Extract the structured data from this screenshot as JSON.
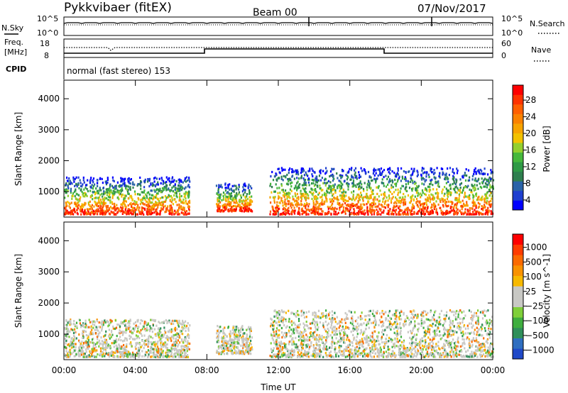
{
  "header": {
    "station": "Pykkvibaer (fitEX)",
    "beam": "Beam 00",
    "date": "07/Nov/2017"
  },
  "noise_panel": {
    "left_label": "N.Sky",
    "right_label": "N.Search",
    "ticks": [
      "10^5",
      "10^0"
    ]
  },
  "freq_panel": {
    "left_label_1": "Freq.",
    "left_label_2": "[MHz]",
    "left_ticks": [
      "18",
      "8"
    ],
    "right_label": "Nave",
    "right_ticks": [
      "60",
      "0"
    ],
    "cpid_label": "CPID",
    "cpid_text": "normal (fast stereo) 153"
  },
  "chart_data": [
    {
      "type": "heatmap",
      "title": "",
      "ylabel": "Slant Range [km]",
      "ylim": [
        180,
        4600
      ],
      "yticks": [
        1000,
        2000,
        3000,
        4000
      ],
      "xlabel": "Time UT",
      "xlim": [
        "00:00",
        "24:00"
      ],
      "colorbar": {
        "label": "Power [dB]",
        "ticks": [
          "28",
          "24",
          "20",
          "16",
          "12",
          "8",
          "4"
        ],
        "range": [
          0,
          30
        ],
        "colors": [
          "#0000ff",
          "#1e3fd0",
          "#2a63a8",
          "#2f7f4f",
          "#2f9a46",
          "#46b83c",
          "#93cf2e",
          "#f2c200",
          "#f7a400",
          "#fa8200",
          "#ff6000",
          "#ff3300",
          "#ff0000"
        ]
      },
      "echo_regions": [
        {
          "t_start": "00:00",
          "t_end": "07:00",
          "range_km": [
            300,
            1500
          ],
          "power_db": [
            4,
            26
          ]
        },
        {
          "t_start": "08:30",
          "t_end": "10:30",
          "range_km": [
            400,
            1300
          ],
          "power_db": [
            6,
            24
          ]
        },
        {
          "t_start": "11:30",
          "t_end": "24:00",
          "range_km": [
            300,
            1800
          ],
          "power_db": [
            4,
            30
          ]
        }
      ]
    },
    {
      "type": "heatmap",
      "title": "",
      "ylabel": "Slant Range [km]",
      "ylim": [
        180,
        4600
      ],
      "yticks": [
        1000,
        2000,
        3000,
        4000
      ],
      "xlabel": "Time UT",
      "xlim": [
        "00:00",
        "24:00"
      ],
      "xticks": [
        "00:00",
        "04:00",
        "08:00",
        "12:00",
        "16:00",
        "20:00",
        "00:00"
      ],
      "colorbar": {
        "label": "Velocity [m s^-1]",
        "ticks": [
          "1000",
          "500",
          "100",
          "25",
          "−25",
          "−100",
          "−500",
          "−1000"
        ],
        "colors": [
          "#1f49c8",
          "#2f6ec0",
          "#2f8f5a",
          "#3fae3f",
          "#7fcf3a",
          "#c8c8c4",
          "#c8c8c4",
          "#f7b900",
          "#f99200",
          "#fb6a00",
          "#ff3c00",
          "#ff0000"
        ]
      },
      "echo_regions": [
        {
          "t_start": "00:00",
          "t_end": "07:00",
          "range_km": [
            300,
            1500
          ],
          "velocity_ms": [
            -500,
            100
          ]
        },
        {
          "t_start": "08:30",
          "t_end": "10:30",
          "range_km": [
            400,
            1300
          ],
          "velocity_ms": [
            -500,
            25
          ]
        },
        {
          "t_start": "11:30",
          "t_end": "24:00",
          "range_km": [
            300,
            1800
          ],
          "velocity_ms": [
            -500,
            500
          ]
        }
      ]
    }
  ]
}
